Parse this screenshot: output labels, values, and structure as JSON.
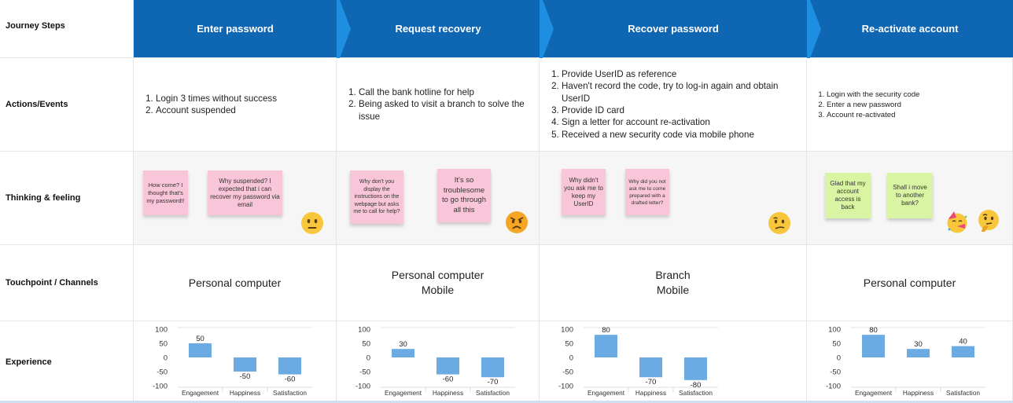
{
  "rows": {
    "journey_steps": "Journey Steps",
    "actions": "Actions/Events",
    "thinking": "Thinking & feeling",
    "touchpoints": "Touchpoint / Channels",
    "experience": "Experience"
  },
  "steps": [
    {
      "title": "Enter password",
      "actions": [
        "Login 3 times without success",
        "Account suspended"
      ],
      "notes": [
        "How come? I thought that's my password!!",
        "Why suspended? I expected that i can recover my password via email"
      ],
      "emojis": [
        "neutral-face-icon"
      ],
      "touchpoints": [
        "Personal computer"
      ]
    },
    {
      "title": "Request recovery",
      "actions": [
        "Call the bank hotline for help",
        "Being asked to visit a branch to solve the issue"
      ],
      "notes": [
        "Why don't you display the instructions on the webpage but asks me to call for help?",
        "It's so troublesome to go through all this"
      ],
      "emojis": [
        "angry-face-icon"
      ],
      "touchpoints": [
        "Personal computer",
        "Mobile"
      ]
    },
    {
      "title": "Recover password",
      "actions": [
        "Provide UserID as reference",
        "Haven't record the code, try to log-in again and obtain UserID",
        "Provide ID card",
        "Sign a letter for account re-activation",
        "Received a new security code via mobile phone"
      ],
      "notes": [
        "Why didn't you ask me to keep my UserID",
        "Why did you not ask me to come prepared with a drafted letter?"
      ],
      "emojis": [
        "confused-face-icon"
      ],
      "touchpoints": [
        "Branch",
        "Mobile"
      ]
    },
    {
      "title": "Re-activate account",
      "actions": [
        "Login with the security code",
        "Enter a new password",
        "Account re-activated"
      ],
      "notes": [
        "Glad that my account access is back",
        "Shall i move to another bank?"
      ],
      "emojis": [
        "party-face-icon",
        "thinking-face-icon"
      ],
      "touchpoints": [
        "Personal computer"
      ]
    }
  ],
  "colors": {
    "header": "#0f66b3",
    "header_arrow": "#1e8ee0",
    "bar": "#6aabe3",
    "sticky_pink": "#f9c6d9",
    "sticky_green": "#d9f5a3"
  },
  "chart_data": [
    {
      "type": "bar",
      "categories": [
        "Engagement",
        "Happiness",
        "Satisfaction"
      ],
      "values": [
        50,
        -50,
        -60
      ],
      "ylim": [
        -100,
        100
      ],
      "yticks": [
        100,
        50,
        0,
        -50,
        -100
      ]
    },
    {
      "type": "bar",
      "categories": [
        "Engagement",
        "Happiness",
        "Satisfaction"
      ],
      "values": [
        30,
        -60,
        -70
      ],
      "ylim": [
        -100,
        100
      ],
      "yticks": [
        100,
        50,
        0,
        -50,
        -100
      ]
    },
    {
      "type": "bar",
      "categories": [
        "Engagement",
        "Happiness",
        "Satisfaction"
      ],
      "values": [
        80,
        -70,
        -80
      ],
      "ylim": [
        -100,
        100
      ],
      "yticks": [
        100,
        50,
        0,
        -50,
        -100
      ]
    },
    {
      "type": "bar",
      "categories": [
        "Engagement",
        "Happiness",
        "Satisfaction"
      ],
      "values": [
        80,
        30,
        40
      ],
      "ylim": [
        -100,
        100
      ],
      "yticks": [
        100,
        50,
        0,
        -50,
        -100
      ]
    }
  ]
}
